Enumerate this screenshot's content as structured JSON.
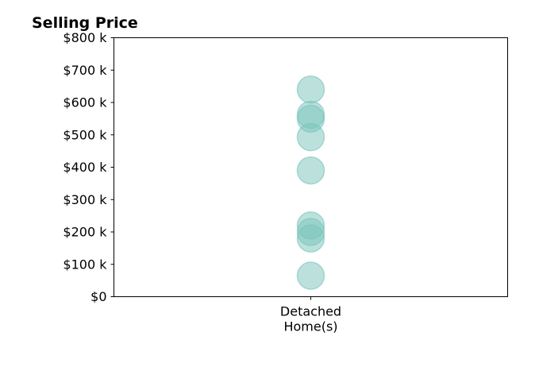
{
  "chart_data": {
    "type": "scatter",
    "title": "Selling Price",
    "xlabel": "",
    "ylabel": "",
    "categories": [
      [
        "Detached",
        "Home(s)"
      ]
    ],
    "ylim": [
      0,
      800000
    ],
    "y_ticks": [
      {
        "value": 0,
        "label": "$0"
      },
      {
        "value": 100000,
        "label": "$100 k"
      },
      {
        "value": 200000,
        "label": "$200 k"
      },
      {
        "value": 300000,
        "label": "$300 k"
      },
      {
        "value": 400000,
        "label": "$400 k"
      },
      {
        "value": 500000,
        "label": "$500 k"
      },
      {
        "value": 600000,
        "label": "$600 k"
      },
      {
        "value": 700000,
        "label": "$700 k"
      },
      {
        "value": 800000,
        "label": "$800 k"
      }
    ],
    "series": [
      {
        "category_index": 0,
        "values": [
          640000,
          562000,
          550000,
          493000,
          390000,
          220000,
          200000,
          180000,
          65000
        ]
      }
    ],
    "grid": false,
    "legend": "none",
    "point_color": "#7ac4bc"
  }
}
